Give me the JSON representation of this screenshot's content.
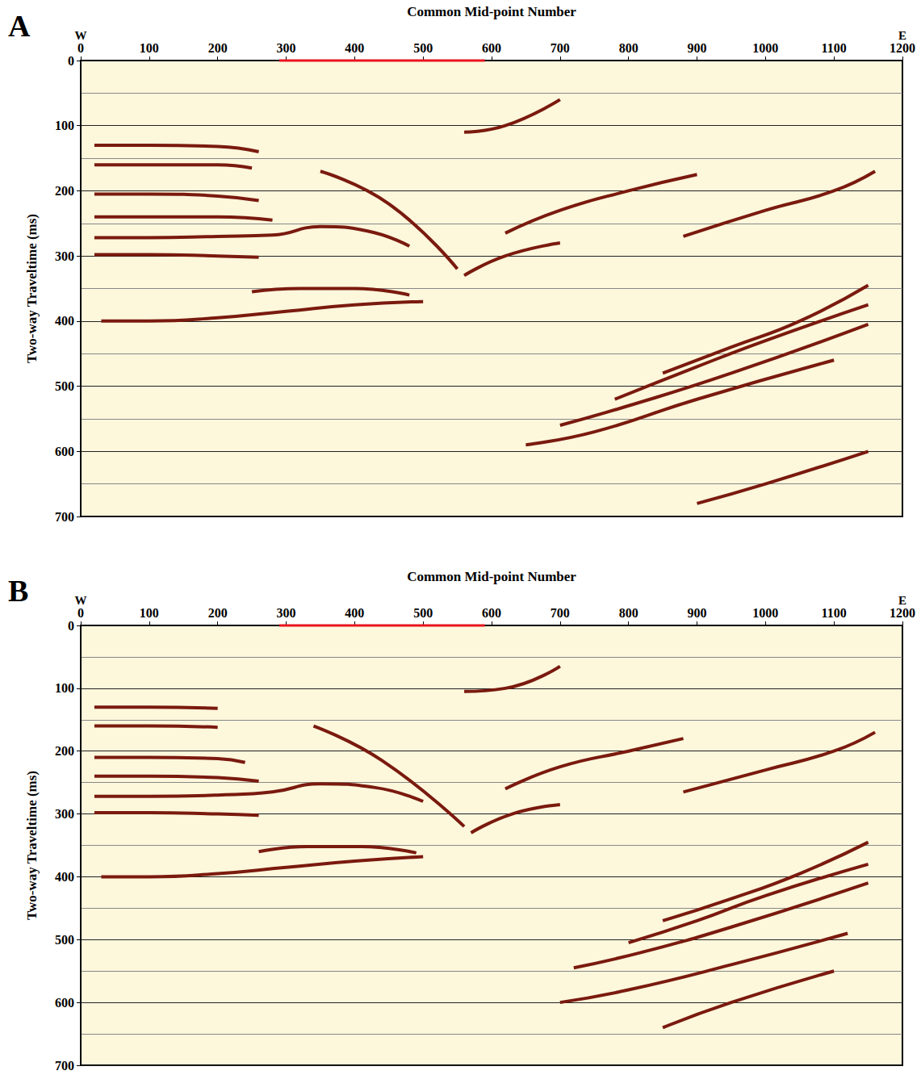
{
  "chart_data": [
    {
      "type": "line",
      "title": "A",
      "x_label": "Common Mid-point Number",
      "y_label": "Two-way Traveltime (ms)",
      "annotations": [
        {
          "text": "W",
          "x": 0
        },
        {
          "text": "E",
          "x": 1200
        }
      ],
      "highlight": {
        "x": [
          290,
          590
        ],
        "y": 0,
        "color": "#e8141e"
      },
      "xlim": [
        0,
        1200
      ],
      "xticks": [
        0,
        100,
        200,
        300,
        400,
        500,
        600,
        700,
        800,
        900,
        1000,
        1100,
        1200
      ],
      "ylim": [
        0,
        700
      ],
      "yticks": [
        0,
        100,
        200,
        300,
        400,
        500,
        600,
        700
      ],
      "grid": true,
      "color": "#7a1a0e",
      "series": [
        {
          "x": [
            20,
            100,
            200,
            260
          ],
          "values": [
            130,
            130,
            132,
            140
          ]
        },
        {
          "x": [
            20,
            100,
            200,
            250
          ],
          "values": [
            160,
            160,
            160,
            165
          ]
        },
        {
          "x": [
            20,
            100,
            200,
            260
          ],
          "values": [
            205,
            205,
            208,
            215
          ]
        },
        {
          "x": [
            20,
            100,
            200,
            280
          ],
          "values": [
            240,
            240,
            240,
            245
          ]
        },
        {
          "x": [
            20,
            100,
            200,
            280,
            350,
            420,
            480
          ],
          "values": [
            272,
            272,
            270,
            268,
            255,
            262,
            285
          ]
        },
        {
          "x": [
            20,
            100,
            200,
            260
          ],
          "values": [
            298,
            298,
            300,
            302
          ]
        },
        {
          "x": [
            30,
            100,
            200,
            300,
            400,
            500
          ],
          "values": [
            400,
            400,
            395,
            385,
            375,
            370
          ]
        },
        {
          "x": [
            250,
            320,
            400,
            480
          ],
          "values": [
            355,
            350,
            350,
            360
          ]
        },
        {
          "x": [
            850,
            950,
            1050,
            1150
          ],
          "values": [
            480,
            440,
            400,
            345
          ]
        },
        {
          "x": [
            780,
            900,
            1000,
            1150
          ],
          "values": [
            520,
            470,
            430,
            375
          ]
        },
        {
          "x": [
            700,
            800,
            950,
            1150
          ],
          "values": [
            560,
            530,
            480,
            405
          ]
        },
        {
          "x": [
            650,
            750,
            900,
            1100
          ],
          "values": [
            590,
            570,
            520,
            460
          ]
        },
        {
          "x": [
            620,
            700,
            800,
            900
          ],
          "values": [
            265,
            230,
            200,
            175
          ]
        },
        {
          "x": [
            880,
            1000,
            1100,
            1160
          ],
          "values": [
            270,
            230,
            200,
            170
          ]
        },
        {
          "x": [
            560,
            620,
            700
          ],
          "values": [
            110,
            100,
            60
          ]
        },
        {
          "x": [
            350,
            450,
            550
          ],
          "values": [
            170,
            220,
            320
          ]
        },
        {
          "x": [
            560,
            620,
            700
          ],
          "values": [
            330,
            300,
            280
          ]
        },
        {
          "x": [
            900,
            1000,
            1150
          ],
          "values": [
            680,
            650,
            600
          ]
        }
      ]
    },
    {
      "type": "line",
      "title": "B",
      "x_label": "Common Mid-point Number",
      "y_label": "Two-way Traveltime (ms)",
      "annotations": [
        {
          "text": "W",
          "x": 0
        },
        {
          "text": "E",
          "x": 1200
        }
      ],
      "highlight": {
        "x": [
          290,
          590
        ],
        "y": 0,
        "color": "#e8141e"
      },
      "xlim": [
        0,
        1200
      ],
      "xticks": [
        0,
        100,
        200,
        300,
        400,
        500,
        600,
        700,
        800,
        900,
        1000,
        1100,
        1200
      ],
      "ylim": [
        0,
        700
      ],
      "yticks": [
        0,
        100,
        200,
        300,
        400,
        500,
        600,
        700
      ],
      "grid": true,
      "color": "#7a1a0e",
      "series": [
        {
          "x": [
            20,
            100,
            200
          ],
          "values": [
            130,
            130,
            132
          ]
        },
        {
          "x": [
            20,
            100,
            200
          ],
          "values": [
            160,
            160,
            162
          ]
        },
        {
          "x": [
            20,
            100,
            200,
            240
          ],
          "values": [
            210,
            210,
            212,
            218
          ]
        },
        {
          "x": [
            20,
            100,
            200,
            260
          ],
          "values": [
            240,
            240,
            242,
            248
          ]
        },
        {
          "x": [
            20,
            100,
            200,
            280,
            350,
            430,
            500
          ],
          "values": [
            272,
            272,
            270,
            265,
            252,
            258,
            280
          ]
        },
        {
          "x": [
            20,
            100,
            200,
            260
          ],
          "values": [
            298,
            298,
            300,
            302
          ]
        },
        {
          "x": [
            30,
            100,
            200,
            300,
            400,
            500
          ],
          "values": [
            400,
            400,
            395,
            385,
            375,
            368
          ]
        },
        {
          "x": [
            260,
            330,
            410,
            490
          ],
          "values": [
            360,
            352,
            352,
            362
          ]
        },
        {
          "x": [
            850,
            950,
            1050,
            1150
          ],
          "values": [
            470,
            435,
            395,
            345
          ]
        },
        {
          "x": [
            800,
            900,
            1000,
            1150
          ],
          "values": [
            505,
            470,
            430,
            380
          ]
        },
        {
          "x": [
            720,
            820,
            950,
            1150
          ],
          "values": [
            545,
            520,
            480,
            410
          ]
        },
        {
          "x": [
            700,
            800,
            950,
            1120
          ],
          "values": [
            600,
            580,
            540,
            490
          ]
        },
        {
          "x": [
            620,
            700,
            800,
            880
          ],
          "values": [
            260,
            225,
            200,
            180
          ]
        },
        {
          "x": [
            880,
            1000,
            1100,
            1160
          ],
          "values": [
            265,
            230,
            200,
            170
          ]
        },
        {
          "x": [
            560,
            620,
            700
          ],
          "values": [
            105,
            100,
            65
          ]
        },
        {
          "x": [
            340,
            440,
            560
          ],
          "values": [
            160,
            215,
            320
          ]
        },
        {
          "x": [
            570,
            630,
            700
          ],
          "values": [
            330,
            300,
            285
          ]
        },
        {
          "x": [
            850,
            950,
            1100
          ],
          "values": [
            640,
            600,
            550
          ]
        }
      ]
    }
  ]
}
